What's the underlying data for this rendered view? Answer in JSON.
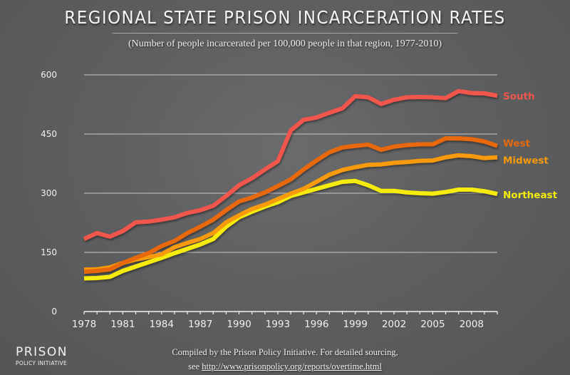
{
  "chart_data": {
    "type": "line",
    "title": "REGIONAL STATE PRISON INCARCERATION RATES",
    "subtitle": "(Number of people incarcerated per 100,000 people in that region, 1977-2010)",
    "xlabel": "",
    "ylabel": "",
    "xlim": [
      1978,
      2010
    ],
    "ylim": [
      0,
      600
    ],
    "yticks": [
      0,
      150,
      300,
      450,
      600
    ],
    "xticks": [
      1978,
      1981,
      1984,
      1987,
      1990,
      1993,
      1996,
      1999,
      2002,
      2005,
      2008
    ],
    "grid": true,
    "legend": "right-end-labels",
    "x": [
      1978,
      1979,
      1980,
      1981,
      1982,
      1983,
      1984,
      1985,
      1986,
      1987,
      1988,
      1989,
      1990,
      1991,
      1992,
      1993,
      1994,
      1995,
      1996,
      1997,
      1998,
      1999,
      2000,
      2001,
      2002,
      2003,
      2004,
      2005,
      2006,
      2007,
      2008,
      2009,
      2010
    ],
    "series": [
      {
        "name": "South",
        "color": "#f0564c",
        "values": [
          184,
          199,
          190,
          204,
          226,
          228,
          233,
          239,
          250,
          257,
          268,
          293,
          320,
          338,
          360,
          381,
          459,
          486,
          492,
          504,
          515,
          546,
          543,
          526,
          537,
          543,
          544,
          543,
          541,
          559,
          554,
          553,
          547
        ]
      },
      {
        "name": "West",
        "color": "#e8690c",
        "values": [
          101,
          103,
          107,
          123,
          136,
          148,
          166,
          179,
          199,
          215,
          233,
          257,
          279,
          289,
          302,
          318,
          335,
          360,
          383,
          404,
          416,
          420,
          423,
          410,
          418,
          422,
          424,
          424,
          439,
          439,
          437,
          431,
          420
        ]
      },
      {
        "name": "Midwest",
        "color": "#f79a0c",
        "values": [
          106,
          107,
          112,
          123,
          132,
          138,
          145,
          163,
          174,
          184,
          199,
          226,
          244,
          260,
          271,
          285,
          299,
          311,
          329,
          347,
          359,
          366,
          372,
          373,
          377,
          379,
          382,
          383,
          391,
          396,
          394,
          389,
          391
        ]
      },
      {
        "name": "Northeast",
        "color": "#f5ec0a",
        "values": [
          84,
          85,
          88,
          103,
          114,
          125,
          136,
          148,
          159,
          170,
          184,
          215,
          239,
          253,
          266,
          277,
          293,
          302,
          311,
          320,
          329,
          331,
          320,
          306,
          306,
          302,
          300,
          299,
          303,
          309,
          309,
          305,
          298
        ]
      }
    ]
  },
  "footer": {
    "logo_main": "PRISON",
    "logo_sub": "POLICY INITIATIVE",
    "line1": "Compiled by the Prison Policy Initiative. For detailed sourcing,",
    "line2_prefix": "see ",
    "link_text": "http://www.prisonpolicy.org/reports/overtime.html"
  }
}
